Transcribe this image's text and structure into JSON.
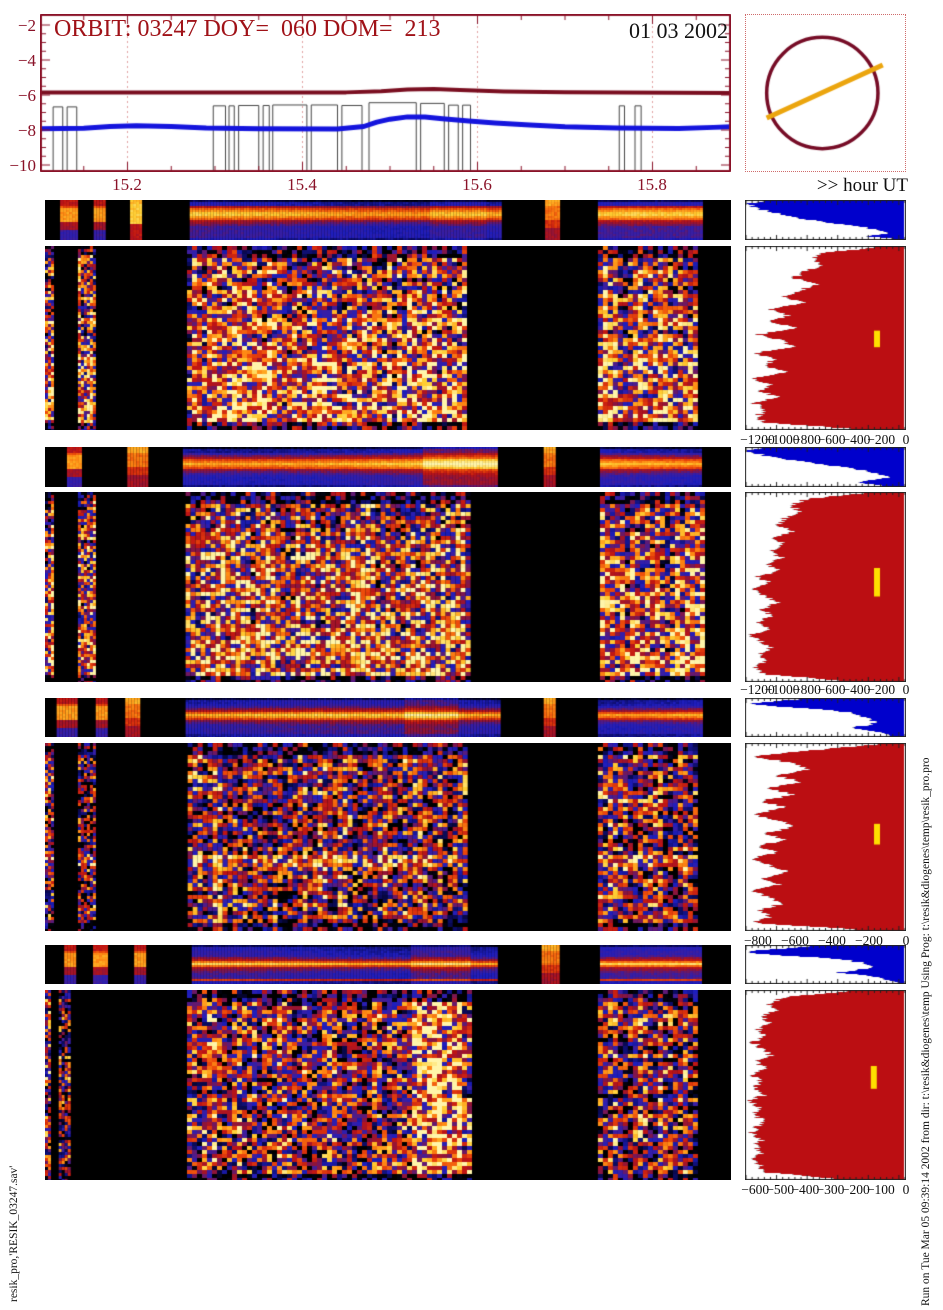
{
  "header": {
    "title": "ORBIT: 03247 DOY=  060 DOM=  213",
    "date": "01 03 2002"
  },
  "labels": {
    "hour_ut": ">> hour UT"
  },
  "footers": {
    "left": "resik_pro,'RESIK_03247.sav'",
    "right": "Run on Tue Mar 05 09:39:14 2002  from dir: t:\\resik&diogenes\\temp  Using Prog: t:\\resik&diogenes\\temp\\resik_pro.pro"
  },
  "colors": {
    "frame": "#8a1228",
    "grid": "#e0a0a0",
    "maroon_line": "#7a0e20",
    "blue_line": "#1414dd",
    "gate": "#444444",
    "hist_blue": "#0000cc",
    "hist_red": "#bb0e12",
    "marker_yellow": "#ffdf00",
    "sun_circle": "#760c26",
    "sun_line": "#eba50e",
    "title_red": "#a01218"
  },
  "chart_data": {
    "light_curve": {
      "type": "line",
      "x_range": [
        15.1,
        15.89
      ],
      "y_range": [
        -10.4,
        -1.4
      ],
      "x_tick_labels": [
        "15.2",
        "15.4",
        "15.6",
        "15.8"
      ],
      "x_ticks": [
        15.2,
        15.4,
        15.6,
        15.8
      ],
      "y_tick_labels": [
        "−2",
        "−4",
        "−6",
        "−8",
        "−10"
      ],
      "y_ticks": [
        -2,
        -4,
        -6,
        -8,
        -10
      ],
      "xlabel": ">> hour UT",
      "grid": "dashed vertical lines at labeled hours",
      "series": [
        {
          "name": "upper-flux-maroon",
          "points": [
            [
              15.1,
              -5.85
            ],
            [
              15.3,
              -5.86
            ],
            [
              15.45,
              -5.85
            ],
            [
              15.49,
              -5.78
            ],
            [
              15.52,
              -5.68
            ],
            [
              15.55,
              -5.66
            ],
            [
              15.58,
              -5.72
            ],
            [
              15.63,
              -5.8
            ],
            [
              15.7,
              -5.84
            ],
            [
              15.89,
              -5.88
            ]
          ]
        },
        {
          "name": "lower-flux-blue",
          "points": [
            [
              15.1,
              -7.93
            ],
            [
              15.15,
              -7.9
            ],
            [
              15.18,
              -7.8
            ],
            [
              15.21,
              -7.76
            ],
            [
              15.25,
              -7.8
            ],
            [
              15.29,
              -7.89
            ],
            [
              15.35,
              -7.93
            ],
            [
              15.44,
              -7.94
            ],
            [
              15.47,
              -7.8
            ],
            [
              15.485,
              -7.55
            ],
            [
              15.5,
              -7.38
            ],
            [
              15.52,
              -7.25
            ],
            [
              15.54,
              -7.26
            ],
            [
              15.56,
              -7.36
            ],
            [
              15.59,
              -7.48
            ],
            [
              15.62,
              -7.6
            ],
            [
              15.66,
              -7.72
            ],
            [
              15.7,
              -7.82
            ],
            [
              15.76,
              -7.89
            ],
            [
              15.83,
              -7.91
            ],
            [
              15.87,
              -7.85
            ],
            [
              15.89,
              -7.82
            ]
          ]
        },
        {
          "name": "data-gate-black",
          "segments": [
            [
              15.115,
              15.126,
              -6.68
            ],
            [
              15.131,
              15.142,
              -6.68
            ],
            [
              15.298,
              15.312,
              -6.62
            ],
            [
              15.316,
              15.322,
              -6.62
            ],
            [
              15.327,
              15.35,
              -6.6
            ],
            [
              15.355,
              15.362,
              -6.6
            ],
            [
              15.366,
              15.405,
              -6.57
            ],
            [
              15.41,
              15.44,
              -6.57
            ],
            [
              15.445,
              15.468,
              -6.6
            ],
            [
              15.476,
              15.53,
              -6.44
            ],
            [
              15.535,
              15.562,
              -6.48
            ],
            [
              15.567,
              15.578,
              -6.58
            ],
            [
              15.583,
              15.592,
              -6.58
            ],
            [
              15.762,
              15.768,
              -6.62
            ],
            [
              15.78,
              15.787,
              -6.62
            ]
          ]
        }
      ]
    },
    "sun_inset": {
      "type": "diagram",
      "circle": {
        "cx": 0.48,
        "cy": 0.5,
        "r": 0.35
      },
      "slit_line": {
        "x0": 0.13,
        "y0": 0.66,
        "x1": 0.86,
        "y1": 0.32
      }
    },
    "spectrogram_panels": [
      {
        "type": "heatmap",
        "geom": {
          "stripY": 200,
          "stripH": 40,
          "mainY": 246,
          "mainH": 184,
          "labelY": 432
        },
        "strip": {
          "band_center": 0.33,
          "band_width": 0.16,
          "flare": [
            0.56,
            0.64
          ],
          "flare_amt": 0.06,
          "segments": [
            [
              0.022,
              0.045,
              "band-red"
            ],
            [
              0.071,
              0.085,
              "band-red"
            ],
            [
              0.124,
              0.139,
              "band-bright"
            ],
            [
              0.211,
              0.663,
              "spectrum"
            ],
            [
              0.729,
              0.747,
              "band-orange"
            ],
            [
              0.806,
              0.955,
              "spectrum"
            ]
          ]
        },
        "main": {
          "mode": "grad",
          "h0": 0.4,
          "h1": 0.74,
          "segments": [
            [
              0.0,
              0.011
            ],
            [
              0.048,
              0.073
            ],
            [
              0.207,
              0.613
            ],
            [
              0.806,
              0.951
            ]
          ]
        },
        "hist_blue_profile": [
          0.8,
          1.0,
          0.97,
          0.93,
          0.88,
          0.82,
          0.75,
          0.66,
          0.56,
          0.44,
          0.32,
          0.22,
          0.15,
          0.1,
          0.25,
          0.1
        ],
        "hist_red_profile": [
          0.12,
          0.5,
          0.58,
          0.52,
          0.63,
          0.7,
          0.56,
          0.66,
          0.78,
          0.62,
          0.85,
          0.72,
          0.88,
          0.66,
          0.92,
          0.78,
          0.7,
          0.95,
          0.82,
          0.9,
          0.74,
          0.97,
          0.85,
          0.92,
          0.8,
          0.95,
          0.88,
          0.93,
          0.9,
          0.35
        ],
        "marker": {
          "x": 0.82,
          "y": 0.46,
          "h": 0.09
        },
        "x_axis": {
          "labels": [
            "−1200",
            "−1000",
            "−800",
            "−600",
            "−400",
            "−200",
            "0"
          ],
          "fracs": [
            0.077,
            0.231,
            0.385,
            0.538,
            0.692,
            0.846,
            1.0
          ]
        }
      },
      {
        "type": "heatmap",
        "geom": {
          "stripY": 447,
          "stripH": 40,
          "mainY": 492,
          "mainH": 190,
          "labelY": 682
        },
        "strip": {
          "band_center": 0.4,
          "band_width": 0.15,
          "flare": [
            0.55,
            0.66
          ],
          "flare_amt": 0.12,
          "segments": [
            [
              0.032,
              0.051,
              "band-red"
            ],
            [
              0.12,
              0.149,
              "band-orange"
            ],
            [
              0.201,
              0.656,
              "spectrum"
            ],
            [
              0.727,
              0.744,
              "band-orange"
            ],
            [
              0.809,
              0.955,
              "spectrum"
            ]
          ]
        },
        "main": {
          "mode": "grad",
          "h0": 0.52,
          "h1": 0.7,
          "segments": [
            [
              0.0,
              0.009
            ],
            [
              0.048,
              0.073
            ],
            [
              0.205,
              0.62
            ],
            [
              0.809,
              0.955
            ]
          ]
        },
        "hist_blue_profile": [
          0.85,
          1.0,
          0.96,
          0.9,
          0.82,
          0.72,
          0.6,
          0.48,
          0.36,
          0.26,
          0.18,
          0.13,
          0.1,
          0.22,
          0.3,
          0.12
        ],
        "hist_red_profile": [
          0.2,
          0.62,
          0.72,
          0.66,
          0.76,
          0.8,
          0.7,
          0.82,
          0.75,
          0.86,
          0.78,
          0.88,
          0.8,
          0.93,
          0.85,
          0.96,
          0.88,
          0.8,
          0.9,
          0.84,
          0.93,
          0.86,
          0.97,
          0.9,
          0.85,
          0.92,
          0.88,
          0.94,
          0.9,
          0.4
        ],
        "marker": {
          "x": 0.82,
          "y": 0.4,
          "h": 0.15
        },
        "x_axis": {
          "labels": [
            "−1200",
            "−1000",
            "−800",
            "−600",
            "−400",
            "−200",
            "0"
          ],
          "fracs": [
            0.077,
            0.231,
            0.385,
            0.538,
            0.692,
            0.846,
            1.0
          ]
        }
      },
      {
        "type": "heatmap",
        "geom": {
          "stripY": 698,
          "stripH": 39,
          "mainY": 743,
          "mainH": 188,
          "labelY": 933
        },
        "strip": {
          "band_center": 0.42,
          "band_width": 0.1,
          "flare": [
            0.52,
            0.6
          ],
          "flare_amt": 0.1,
          "segments": [
            [
              0.017,
              0.047,
              "band-red"
            ],
            [
              0.074,
              0.089,
              "band-red"
            ],
            [
              0.117,
              0.138,
              "band-orange"
            ],
            [
              0.205,
              0.66,
              "spectrum"
            ],
            [
              0.727,
              0.744,
              "band-orange"
            ],
            [
              0.806,
              0.955,
              "spectrum"
            ]
          ]
        },
        "main": {
          "mode": "band",
          "h0": 0.45,
          "bandY": 0.62,
          "bandH": 0.03,
          "boost": 0.28,
          "segments": [
            [
              0.0,
              0.01
            ],
            [
              0.048,
              0.073
            ],
            [
              0.208,
              0.615
            ],
            [
              0.806,
              0.951
            ]
          ]
        },
        "hist_blue_profile": [
          0.55,
          0.8,
          1.0,
          0.85,
          0.6,
          0.42,
          0.32,
          0.27,
          0.23,
          0.2,
          0.18,
          0.25,
          0.35,
          0.22,
          0.12,
          0.07
        ],
        "hist_red_profile": [
          0.1,
          0.55,
          0.97,
          0.72,
          0.6,
          0.82,
          0.65,
          0.87,
          0.7,
          0.92,
          0.75,
          0.97,
          0.8,
          0.7,
          0.88,
          0.75,
          0.93,
          0.8,
          0.98,
          0.85,
          0.74,
          0.9,
          0.8,
          0.96,
          0.85,
          0.78,
          0.92,
          0.85,
          0.96,
          0.3
        ],
        "marker": {
          "x": 0.82,
          "y": 0.43,
          "h": 0.11
        },
        "x_axis": {
          "labels": [
            "−800",
            "−600",
            "−400",
            "−200",
            "0"
          ],
          "fracs": [
            0.08,
            0.31,
            0.54,
            0.77,
            1.0
          ]
        }
      },
      {
        "type": "heatmap",
        "geom": {
          "stripY": 945,
          "stripH": 39,
          "mainY": 990,
          "mainH": 190,
          "labelY": 1182
        },
        "strip": {
          "band_center": 0.46,
          "band_width": 0.07,
          "flare": [
            0.53,
            0.62
          ],
          "flare_amt": 0.12,
          "bottom_line": true,
          "segments": [
            [
              0.028,
              0.044,
              "band-red"
            ],
            [
              0.07,
              0.09,
              "band-red"
            ],
            [
              0.13,
              0.146,
              "band-red"
            ],
            [
              0.214,
              0.656,
              "spectrum"
            ],
            [
              0.724,
              0.748,
              "band-orange"
            ],
            [
              0.809,
              0.955,
              "spectrum"
            ]
          ]
        },
        "main": {
          "mode": "vband",
          "h0": 0.46,
          "vx0": 0.53,
          "vx1": 0.605,
          "boost": 0.3,
          "segments": [
            [
              0.0,
              0.006
            ],
            [
              0.02,
              0.035
            ],
            [
              0.207,
              0.618
            ],
            [
              0.806,
              0.951
            ]
          ]
        },
        "hist_blue_profile": [
          0.5,
          0.7,
          0.95,
          1.0,
          0.8,
          0.5,
          0.35,
          0.27,
          0.22,
          0.19,
          0.3,
          0.42,
          0.28,
          0.14,
          0.09,
          0.05
        ],
        "hist_red_profile": [
          0.3,
          0.76,
          0.86,
          0.8,
          0.9,
          0.85,
          0.93,
          0.88,
          0.96,
          0.9,
          0.85,
          0.94,
          0.88,
          0.97,
          0.9,
          0.95,
          0.88,
          0.98,
          0.92,
          0.96,
          0.9,
          0.93,
          0.97,
          0.9,
          0.95,
          0.9,
          0.96,
          0.92,
          0.9,
          0.45
        ],
        "marker": {
          "x": 0.8,
          "y": 0.4,
          "h": 0.12
        },
        "x_axis": {
          "labels": [
            "−600",
            "−500",
            "−400",
            "−300",
            "−200",
            "−100",
            "0"
          ],
          "fracs": [
            0.063,
            0.219,
            0.375,
            0.531,
            0.688,
            0.844,
            1.0
          ]
        }
      }
    ]
  }
}
